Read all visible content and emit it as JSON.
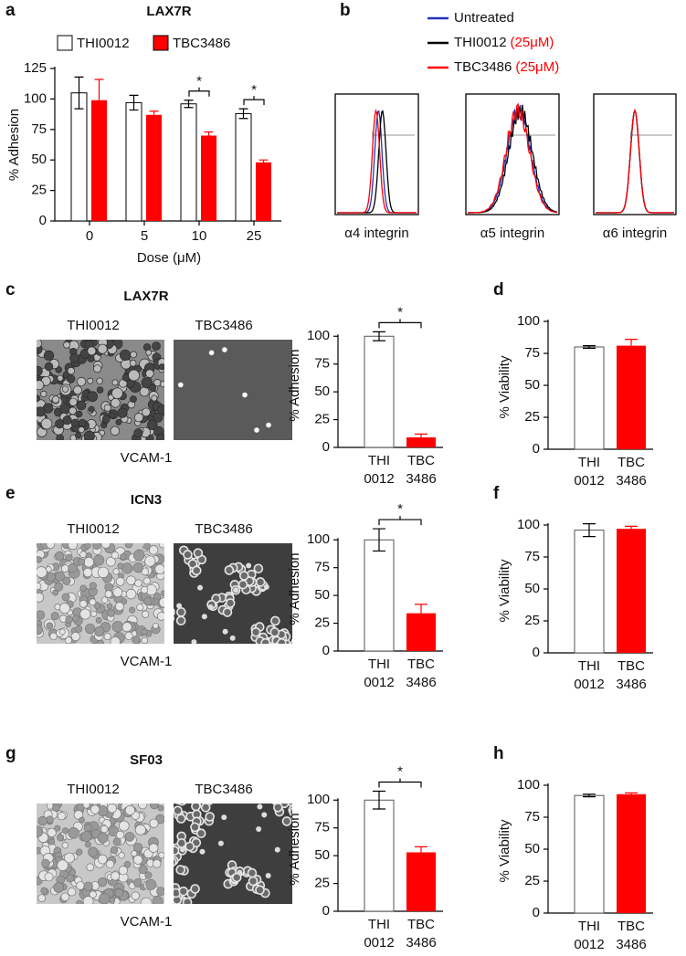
{
  "chart_data": [
    {
      "panel": "a",
      "type": "bar",
      "title": "LAX7R",
      "categories": [
        "0",
        "5",
        "10",
        "25"
      ],
      "x_label": "Dose (μM)",
      "y_label": "% Adhesion",
      "ylim": [
        0,
        125
      ],
      "yticks": [
        0,
        25,
        50,
        75,
        100,
        125
      ],
      "series": [
        {
          "name": "THI0012",
          "color": "#ffffff",
          "values": [
            105,
            97,
            96,
            88
          ],
          "errors": [
            13,
            6,
            3,
            4
          ]
        },
        {
          "name": "TBC3486",
          "color": "#ff0000",
          "values": [
            99,
            87,
            70,
            48
          ],
          "errors": [
            17,
            3,
            3,
            2
          ]
        }
      ],
      "significance": [
        null,
        null,
        "*",
        "*"
      ]
    },
    {
      "panel": "b",
      "type": "flow",
      "dose_color": "#ff0000",
      "series": [
        {
          "name": "Untreated",
          "color": "#2233bb"
        },
        {
          "name": "THI0012",
          "dose": "(25μM)",
          "color": "#000000"
        },
        {
          "name": "TBC3486",
          "dose": "(25μM)",
          "color": "#ff0000"
        }
      ],
      "panels": [
        "α4 integrin",
        "α5 integrin",
        "α6 integrin"
      ]
    },
    {
      "panel": "c",
      "type": "bar",
      "title": "LAX7R",
      "images": [
        "THI0012",
        "TBC3486"
      ],
      "substrate": "VCAM-1",
      "categories": [
        [
          "THI",
          "0012"
        ],
        [
          "TBC",
          "3486"
        ]
      ],
      "y_label": "% Adhesion",
      "ylim": [
        0,
        115
      ],
      "yticks": [
        0,
        25,
        50,
        75,
        100
      ],
      "colors": [
        "#ffffff",
        "#ff0000"
      ],
      "values": [
        100,
        9
      ],
      "errors": [
        4,
        3
      ],
      "significance": "*"
    },
    {
      "panel": "d",
      "type": "bar",
      "categories": [
        [
          "THI",
          "0012"
        ],
        [
          "TBC",
          "3486"
        ]
      ],
      "y_label": "% Viability",
      "ylim": [
        0,
        100
      ],
      "yticks": [
        0,
        25,
        50,
        75,
        100
      ],
      "colors": [
        "#ffffff",
        "#ff0000"
      ],
      "values": [
        80,
        81
      ],
      "errors": [
        1,
        5
      ]
    },
    {
      "panel": "e",
      "type": "bar",
      "title": "ICN3",
      "images": [
        "THI0012",
        "TBC3486"
      ],
      "substrate": "VCAM-1",
      "categories": [
        [
          "THI",
          "0012"
        ],
        [
          "TBC",
          "3486"
        ]
      ],
      "y_label": "% Adhesion",
      "ylim": [
        0,
        115
      ],
      "yticks": [
        0,
        25,
        50,
        75,
        100
      ],
      "colors": [
        "#ffffff",
        "#ff0000"
      ],
      "values": [
        100,
        34
      ],
      "errors": [
        10,
        8
      ],
      "significance": "*"
    },
    {
      "panel": "f",
      "type": "bar",
      "categories": [
        [
          "THI",
          "0012"
        ],
        [
          "TBC",
          "3486"
        ]
      ],
      "y_label": "% Viability",
      "ylim": [
        0,
        100
      ],
      "yticks": [
        0,
        25,
        50,
        75,
        100
      ],
      "colors": [
        "#ffffff",
        "#ff0000"
      ],
      "values": [
        96,
        97
      ],
      "errors": [
        5,
        2
      ]
    },
    {
      "panel": "g",
      "type": "bar",
      "title": "SF03",
      "images": [
        "THI0012",
        "TBC3486"
      ],
      "substrate": "VCAM-1",
      "categories": [
        [
          "THI",
          "0012"
        ],
        [
          "TBC",
          "3486"
        ]
      ],
      "y_label": "% Adhesion",
      "ylim": [
        0,
        115
      ],
      "yticks": [
        0,
        25,
        50,
        75,
        100
      ],
      "colors": [
        "#ffffff",
        "#ff0000"
      ],
      "values": [
        100,
        53
      ],
      "errors": [
        8,
        5
      ],
      "significance": "*"
    },
    {
      "panel": "h",
      "type": "bar",
      "categories": [
        [
          "THI",
          "0012"
        ],
        [
          "TBC",
          "3486"
        ]
      ],
      "y_label": "% Viability",
      "ylim": [
        0,
        100
      ],
      "yticks": [
        0,
        25,
        50,
        75,
        100
      ],
      "colors": [
        "#ffffff",
        "#ff0000"
      ],
      "values": [
        92,
        93
      ],
      "errors": [
        1,
        1
      ]
    }
  ]
}
